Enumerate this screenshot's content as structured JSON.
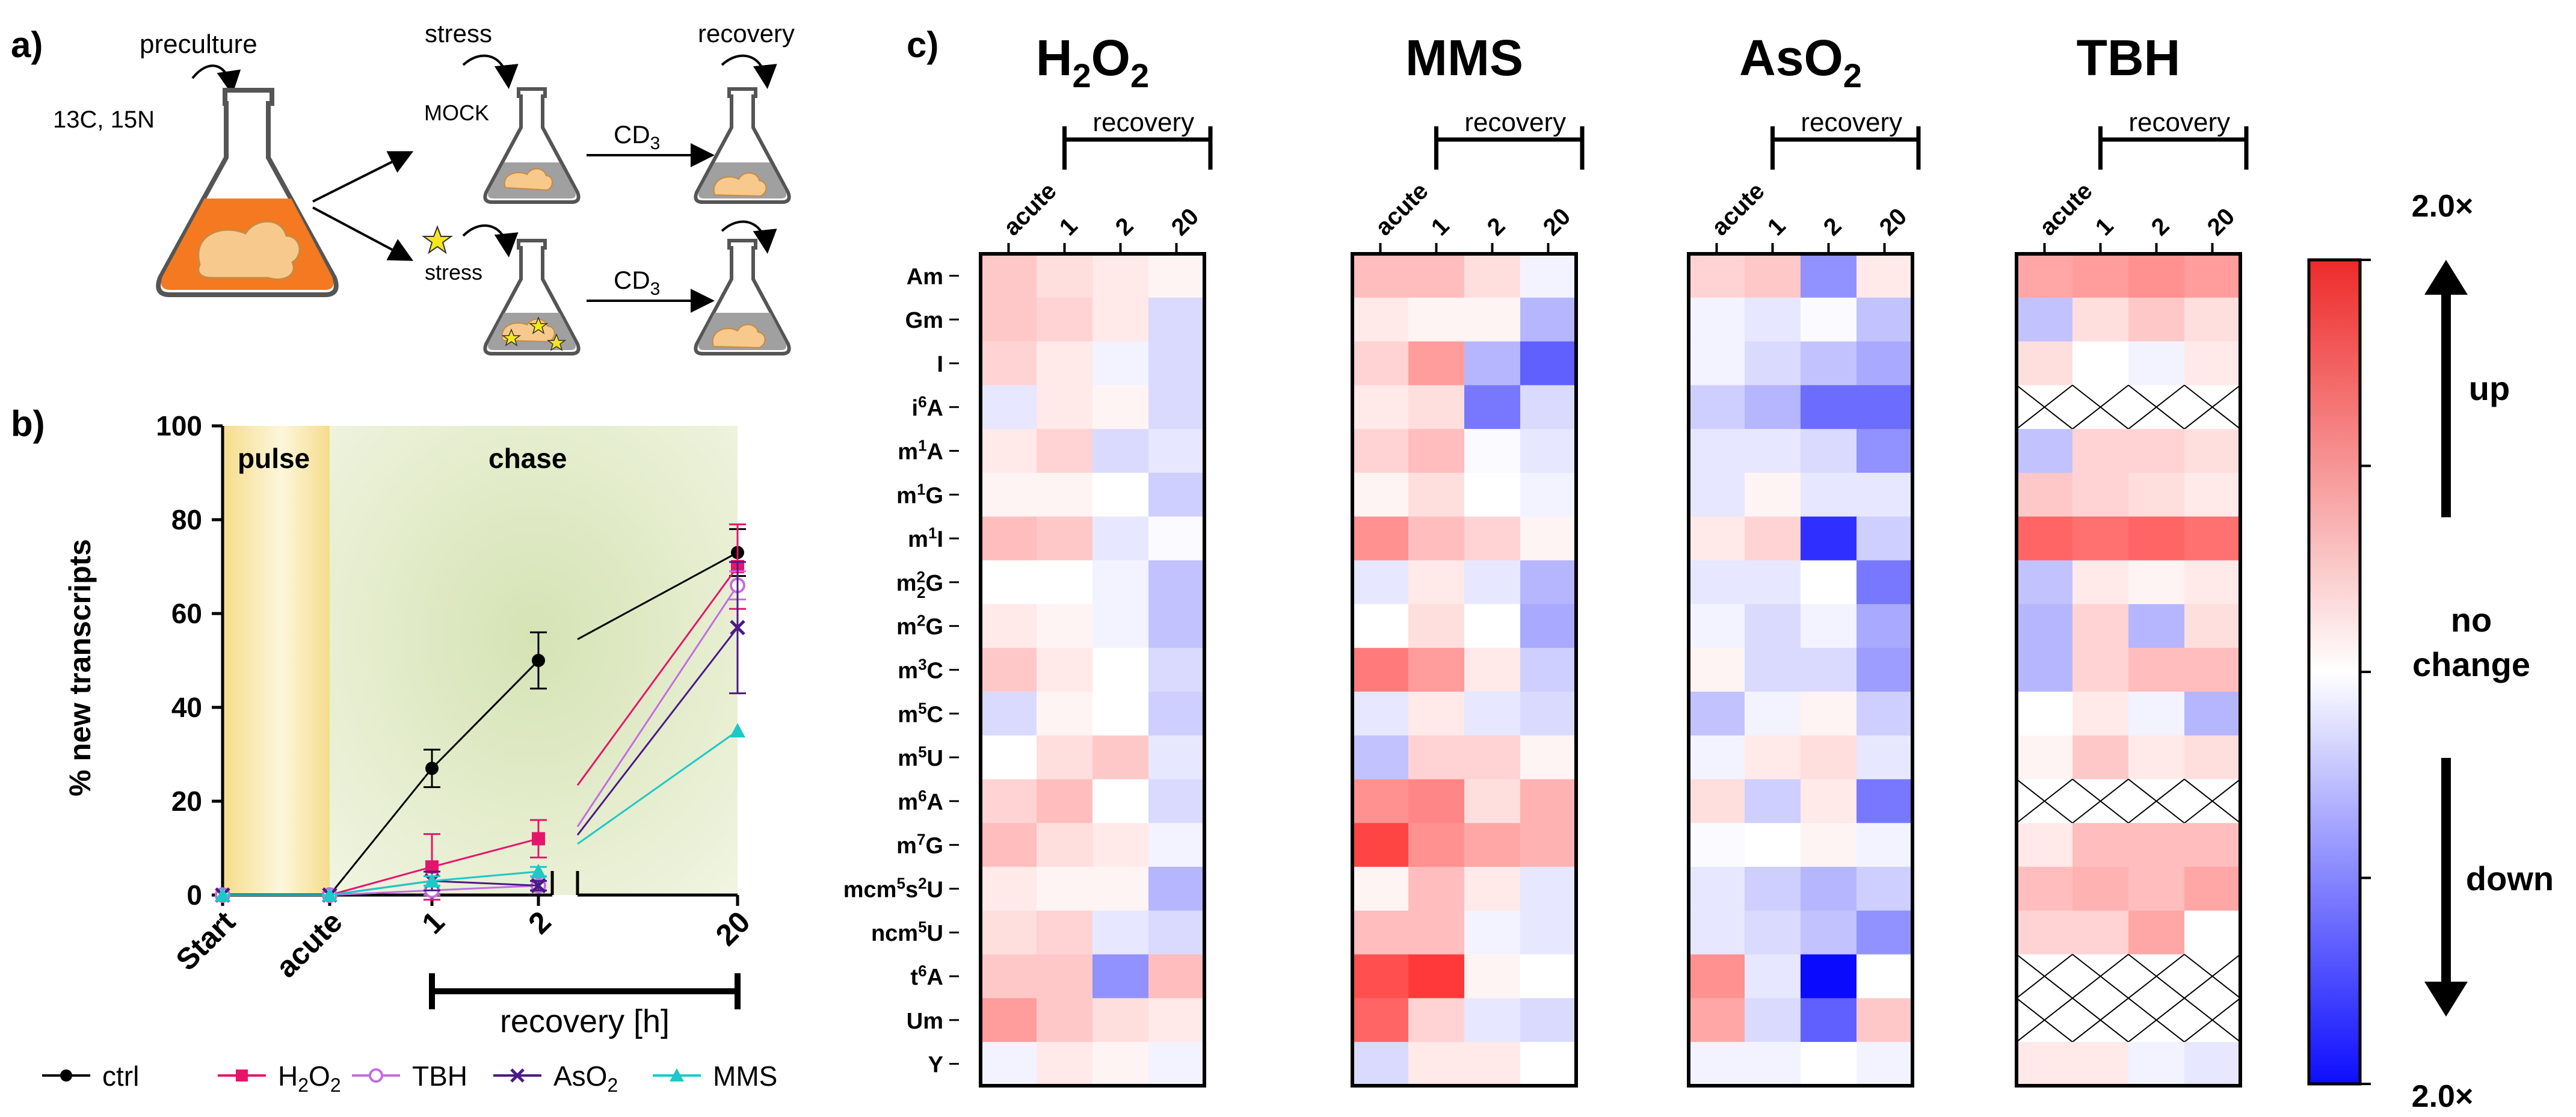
{
  "panel_labels": {
    "a": "a)",
    "b": "b)",
    "c": "c)"
  },
  "panel_a": {
    "preculture": "preculture",
    "label_isotopes": "13C, 15N",
    "stress": "stress",
    "recovery": "recovery",
    "mock": "MOCK",
    "stress_lower": "stress",
    "cd3_top": "CD",
    "cd3_top_sub": "3",
    "cd3_bottom": "CD",
    "cd3_bottom_sub": "3",
    "colors": {
      "medium": "#f47920",
      "cell": "#f7c98c",
      "grey": "#a0a0a0",
      "star": "#f6e71c"
    }
  },
  "chart_data": [
    {
      "panel": "b",
      "type": "line",
      "ylabel": "% new transcripts",
      "ylim": [
        0,
        100
      ],
      "yticks": [
        0,
        20,
        40,
        60,
        80,
        100
      ],
      "categories": [
        "Start",
        "acute",
        "1",
        "2",
        "20"
      ],
      "x_positions": [
        0,
        1,
        2,
        3,
        4
      ],
      "phase_labels": {
        "pulse": "pulse",
        "chase": "chase"
      },
      "recovery_label": "recovery [h]",
      "series": [
        {
          "name": "ctrl",
          "color": "#000000",
          "marker": "circle",
          "values": [
            0,
            0,
            27,
            50,
            73
          ],
          "errors": [
            0,
            0,
            4,
            6,
            5
          ]
        },
        {
          "name": "H2O2",
          "label_main": "H",
          "label_sub1": "2",
          "label_mid": "O",
          "label_sub2": "2",
          "color": "#e6156c",
          "marker": "square",
          "values": [
            0,
            0,
            6,
            12,
            70
          ],
          "errors": [
            0,
            0,
            7,
            4,
            9
          ]
        },
        {
          "name": "TBH",
          "color": "#c26ee0",
          "marker": "open-circle",
          "values": [
            0,
            0,
            1,
            2,
            66
          ],
          "errors": [
            0,
            0,
            1,
            1,
            3
          ]
        },
        {
          "name": "AsO2",
          "label_main": "AsO",
          "label_sub1": "2",
          "color": "#4b1a87",
          "marker": "x",
          "values": [
            0,
            0,
            3,
            2,
            57
          ],
          "errors": [
            0,
            0,
            2,
            1,
            14
          ]
        },
        {
          "name": "MMS",
          "color": "#1ec8c8",
          "marker": "triangle",
          "values": [
            0,
            0,
            3,
            5,
            35
          ],
          "errors": [
            0,
            0,
            1,
            1,
            0
          ]
        }
      ]
    },
    {
      "panel": "c",
      "type": "heatmap",
      "scale_min": -1,
      "scale_max": 1,
      "colorbar_top": "2.0×",
      "colorbar_bottom": "2.0×",
      "colorbar_mid_line1": "no",
      "colorbar_mid_line2": "change",
      "up_label": "up",
      "down_label": "down",
      "column_labels": [
        "acute",
        "1",
        "2",
        "20"
      ],
      "recovery_label": "recovery",
      "row_labels": [
        {
          "main": "Am"
        },
        {
          "main": "Gm"
        },
        {
          "main": "I"
        },
        {
          "main": "i",
          "sup": "6",
          "end": "A"
        },
        {
          "main": "m",
          "sup": "1",
          "end": "A"
        },
        {
          "main": "m",
          "sup": "1",
          "end": "G"
        },
        {
          "main": "m",
          "sup": "1",
          "end": "I"
        },
        {
          "main": "m",
          "sup": "2",
          "sub": "2",
          "end": "G"
        },
        {
          "main": "m",
          "sup": "2",
          "end": "G"
        },
        {
          "main": "m",
          "sup": "3",
          "end": "C"
        },
        {
          "main": "m",
          "sup": "5",
          "end": "C"
        },
        {
          "main": "m",
          "sup": "5",
          "end": "U"
        },
        {
          "main": "m",
          "sup": "6",
          "end": "A"
        },
        {
          "main": "m",
          "sup": "7",
          "end": "G"
        },
        {
          "main": "mcm",
          "sup": "5",
          "mid": "s",
          "sup2": "2",
          "end": "U"
        },
        {
          "main": "ncm",
          "sup": "5",
          "end": "U"
        },
        {
          "main": "t",
          "sup": "6",
          "end": "A"
        },
        {
          "main": "Um"
        },
        {
          "main": "Y"
        }
      ],
      "maps": [
        {
          "title_main": "H",
          "title_sub1": "2",
          "title_mid": "O",
          "title_sub2": "2",
          "values": [
            [
              0.25,
              0.15,
              0.1,
              0.05
            ],
            [
              0.25,
              0.2,
              0.1,
              -0.15
            ],
            [
              0.2,
              0.1,
              -0.05,
              -0.15
            ],
            [
              -0.1,
              0.1,
              0.05,
              -0.15
            ],
            [
              0.1,
              0.2,
              -0.15,
              -0.1
            ],
            [
              0.05,
              0.05,
              0.0,
              -0.2
            ],
            [
              0.3,
              0.25,
              -0.1,
              -0.02
            ],
            [
              0.0,
              0.0,
              -0.05,
              -0.25
            ],
            [
              0.1,
              0.05,
              -0.05,
              -0.25
            ],
            [
              0.25,
              0.1,
              0.0,
              -0.15
            ],
            [
              -0.15,
              0.05,
              0.0,
              -0.2
            ],
            [
              0.0,
              0.15,
              0.25,
              -0.1
            ],
            [
              0.2,
              0.3,
              0.0,
              -0.15
            ],
            [
              0.3,
              0.15,
              0.1,
              -0.05
            ],
            [
              0.1,
              0.05,
              0.05,
              -0.3
            ],
            [
              0.15,
              0.2,
              -0.1,
              -0.15
            ],
            [
              0.25,
              0.25,
              -0.45,
              0.3
            ],
            [
              0.45,
              0.25,
              0.15,
              0.1
            ],
            [
              -0.05,
              0.1,
              0.05,
              -0.05
            ]
          ]
        },
        {
          "title_main": "MMS",
          "values": [
            [
              0.3,
              0.3,
              0.15,
              -0.05
            ],
            [
              0.1,
              0.05,
              0.05,
              -0.3
            ],
            [
              0.2,
              0.45,
              -0.3,
              -0.65
            ],
            [
              0.1,
              0.15,
              -0.55,
              -0.15
            ],
            [
              0.2,
              0.3,
              -0.02,
              -0.1
            ],
            [
              0.05,
              0.15,
              0.0,
              -0.05
            ],
            [
              0.5,
              0.3,
              0.2,
              0.05
            ],
            [
              -0.1,
              0.1,
              -0.1,
              -0.3
            ],
            [
              0.0,
              0.15,
              0.0,
              -0.35
            ],
            [
              0.6,
              0.45,
              0.1,
              -0.2
            ],
            [
              -0.1,
              0.1,
              -0.1,
              -0.15
            ],
            [
              -0.25,
              0.2,
              0.2,
              0.05
            ],
            [
              0.5,
              0.55,
              0.15,
              0.35
            ],
            [
              0.85,
              0.5,
              0.4,
              0.35
            ],
            [
              0.05,
              0.3,
              0.1,
              -0.1
            ],
            [
              0.3,
              0.3,
              -0.05,
              -0.1
            ],
            [
              0.8,
              0.9,
              0.05,
              0.0
            ],
            [
              0.7,
              0.2,
              -0.1,
              -0.15
            ],
            [
              -0.15,
              0.1,
              0.1,
              0.0
            ]
          ]
        },
        {
          "title_main": "AsO",
          "title_sub1": "2",
          "values": [
            [
              0.2,
              0.25,
              -0.45,
              0.1
            ],
            [
              -0.05,
              -0.1,
              -0.02,
              -0.25
            ],
            [
              -0.05,
              -0.15,
              -0.25,
              -0.35
            ],
            [
              -0.2,
              -0.3,
              -0.6,
              -0.6
            ],
            [
              -0.1,
              -0.1,
              -0.15,
              -0.45
            ],
            [
              -0.1,
              0.05,
              -0.1,
              -0.1
            ],
            [
              0.1,
              0.2,
              -0.85,
              -0.2
            ],
            [
              -0.1,
              -0.1,
              0.0,
              -0.55
            ],
            [
              -0.05,
              -0.15,
              -0.05,
              -0.35
            ],
            [
              0.05,
              -0.15,
              -0.15,
              -0.4
            ],
            [
              -0.25,
              -0.05,
              0.05,
              -0.2
            ],
            [
              -0.05,
              0.1,
              0.15,
              -0.1
            ],
            [
              0.15,
              -0.2,
              0.1,
              -0.55
            ],
            [
              -0.02,
              0.0,
              0.05,
              -0.05
            ],
            [
              -0.1,
              -0.2,
              -0.3,
              -0.2
            ],
            [
              -0.1,
              -0.15,
              -0.25,
              -0.45
            ],
            [
              0.5,
              -0.1,
              -1.0,
              0.0
            ],
            [
              0.4,
              -0.15,
              -0.65,
              0.25
            ],
            [
              -0.05,
              -0.05,
              0.0,
              -0.05
            ]
          ]
        },
        {
          "title_main": "TBH",
          "values": [
            [
              0.4,
              0.45,
              0.5,
              0.45
            ],
            [
              -0.25,
              0.15,
              0.25,
              0.15
            ],
            [
              0.15,
              0.0,
              -0.05,
              0.1
            ],
            [
              "x",
              "x",
              "x",
              "x"
            ],
            [
              -0.25,
              0.2,
              0.2,
              0.15
            ],
            [
              0.25,
              0.2,
              0.15,
              0.1
            ],
            [
              0.7,
              0.65,
              0.7,
              0.65
            ],
            [
              -0.25,
              0.1,
              0.05,
              0.1
            ],
            [
              -0.3,
              0.2,
              -0.3,
              0.15
            ],
            [
              -0.3,
              0.2,
              0.3,
              0.3
            ],
            [
              0.0,
              0.1,
              -0.05,
              -0.3
            ],
            [
              0.05,
              0.25,
              0.1,
              0.15
            ],
            [
              "x",
              "x",
              "x",
              "x"
            ],
            [
              0.1,
              0.3,
              0.3,
              0.3
            ],
            [
              0.3,
              0.35,
              0.3,
              0.4
            ],
            [
              0.2,
              0.2,
              0.4,
              0.0
            ],
            [
              "x",
              "x",
              "x",
              "x"
            ],
            [
              "x",
              "x",
              "x",
              "x"
            ],
            [
              0.1,
              0.1,
              -0.05,
              -0.1
            ]
          ]
        }
      ]
    }
  ]
}
